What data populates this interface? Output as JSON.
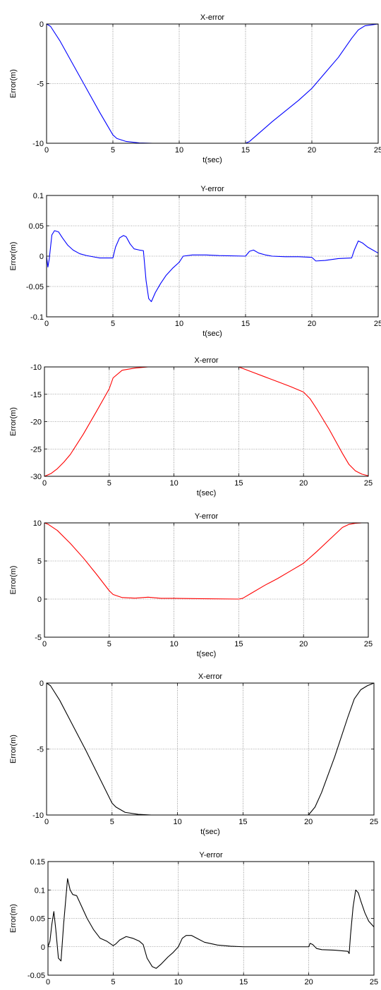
{
  "chart_data": [
    {
      "type": "line",
      "title": "X-error",
      "xlabel": "t(sec)",
      "ylabel": "Error(m)",
      "xlim": [
        0,
        25
      ],
      "ylim": [
        -10,
        0
      ],
      "xticks": [
        0,
        5,
        10,
        15,
        20,
        25
      ],
      "xtick_labels": [
        "0",
        "5",
        "10",
        "15",
        "20",
        "25"
      ],
      "yticks": [
        -10,
        -5,
        0
      ],
      "ytick_labels": [
        "-10",
        "-5",
        "0"
      ],
      "grid": true,
      "color": "#0000ff",
      "series": [
        {
          "x": [
            0,
            0.3,
            1,
            2,
            3,
            4,
            5,
            5.3,
            6,
            7,
            8,
            10,
            12,
            15,
            15.3,
            17,
            19,
            20,
            21,
            22,
            23,
            23.5,
            24,
            25
          ],
          "y": [
            0,
            -0.2,
            -1.4,
            -3.4,
            -5.4,
            -7.4,
            -9.3,
            -9.6,
            -9.85,
            -9.97,
            -10,
            -10,
            -10,
            -10,
            -9.85,
            -8.2,
            -6.4,
            -5.4,
            -4.1,
            -2.8,
            -1.2,
            -0.5,
            -0.15,
            0
          ]
        }
      ]
    },
    {
      "type": "line",
      "title": "Y-error",
      "xlabel": "t(sec)",
      "ylabel": "Error(m)",
      "xlim": [
        0,
        25
      ],
      "ylim": [
        -0.1,
        0.1
      ],
      "xticks": [
        0,
        5,
        10,
        15,
        20,
        25
      ],
      "xtick_labels": [
        "0",
        "5",
        "10",
        "15",
        "20",
        "25"
      ],
      "yticks": [
        -0.1,
        -0.05,
        0,
        0.05,
        0.1
      ],
      "ytick_labels": [
        "-0.1",
        "-0.05",
        "0",
        "0.05",
        "0.1"
      ],
      "grid": true,
      "color": "#0000ff",
      "series": [
        {
          "x": [
            0,
            0.1,
            0.2,
            0.4,
            0.6,
            0.9,
            1.2,
            1.6,
            2,
            2.5,
            3,
            3.5,
            4,
            4.5,
            5,
            5.2,
            5.5,
            5.8,
            6,
            6.3,
            6.6,
            7,
            7.3,
            7.5,
            7.7,
            7.9,
            8.2,
            8.6,
            9,
            9.5,
            10,
            10.3,
            11,
            12,
            13,
            15,
            15.3,
            15.6,
            16,
            16.5,
            17,
            18,
            19,
            20,
            20.3,
            21,
            22,
            23,
            23.2,
            23.5,
            23.8,
            24.2,
            24.6,
            25
          ],
          "y": [
            0,
            -0.018,
            -0.005,
            0.035,
            0.042,
            0.04,
            0.03,
            0.018,
            0.01,
            0.004,
            0.001,
            -0.001,
            -0.003,
            -0.003,
            -0.003,
            0.015,
            0.03,
            0.034,
            0.032,
            0.02,
            0.012,
            0.01,
            0.009,
            -0.04,
            -0.07,
            -0.075,
            -0.06,
            -0.045,
            -0.032,
            -0.02,
            -0.01,
            0,
            0.002,
            0.002,
            0.001,
            0,
            0.008,
            0.01,
            0.005,
            0.002,
            0,
            -0.001,
            -0.001,
            -0.002,
            -0.008,
            -0.007,
            -0.004,
            -0.003,
            0.01,
            0.025,
            0.022,
            0.015,
            0.01,
            0.005
          ]
        }
      ]
    },
    {
      "type": "line",
      "title": "X-error",
      "xlabel": "t(sec)",
      "ylabel": "Error(m)",
      "xlim": [
        0,
        25
      ],
      "ylim": [
        -30,
        -10
      ],
      "xticks": [
        0,
        5,
        10,
        15,
        20,
        25
      ],
      "xtick_labels": [
        "0",
        "5",
        "10",
        "15",
        "20",
        "25"
      ],
      "yticks": [
        -30,
        -25,
        -20,
        -15,
        -10
      ],
      "ytick_labels": [
        "-30",
        "-25",
        "-20",
        "-15",
        "-10"
      ],
      "grid": true,
      "color": "#ff0000",
      "series": [
        {
          "x": [
            0,
            0.5,
            1,
            1.5,
            2,
            3,
            4,
            5,
            5.3,
            6,
            7,
            8,
            10,
            12,
            15,
            16,
            17,
            18,
            19,
            20,
            20.5,
            21,
            22,
            23,
            23.5,
            24,
            24.5,
            25
          ],
          "y": [
            -30,
            -29.5,
            -28.6,
            -27.4,
            -26,
            -22.3,
            -18.2,
            -14.0,
            -12.0,
            -10.6,
            -10.2,
            -10,
            -10,
            -10,
            -10,
            -10.9,
            -11.8,
            -12.7,
            -13.6,
            -14.6,
            -15.8,
            -17.6,
            -21.5,
            -25.8,
            -27.8,
            -29.0,
            -29.6,
            -29.9
          ]
        }
      ]
    },
    {
      "type": "line",
      "title": "Y-error",
      "xlabel": "t(sec)",
      "ylabel": "Error(m)",
      "xlim": [
        0,
        25
      ],
      "ylim": [
        -5,
        10
      ],
      "xticks": [
        0,
        5,
        10,
        15,
        20,
        25
      ],
      "xtick_labels": [
        "0",
        "5",
        "10",
        "15",
        "20",
        "25"
      ],
      "yticks": [
        -5,
        0,
        5,
        10
      ],
      "ytick_labels": [
        "-5",
        "0",
        "5",
        "10"
      ],
      "grid": true,
      "color": "#ff0000",
      "series": [
        {
          "x": [
            0,
            0.3,
            1,
            2,
            3,
            4,
            5,
            5.3,
            6,
            7,
            8,
            9,
            10,
            12,
            15,
            15.3,
            16,
            17,
            18,
            19,
            20,
            21,
            22,
            23,
            23.5,
            24,
            24.5,
            25
          ],
          "y": [
            10,
            9.8,
            9.0,
            7.3,
            5.4,
            3.3,
            1.1,
            0.6,
            0.2,
            0.12,
            0.25,
            0.1,
            0.1,
            0.05,
            0,
            0.1,
            0.8,
            1.8,
            2.7,
            3.7,
            4.7,
            6.2,
            7.8,
            9.4,
            9.8,
            9.95,
            10,
            10
          ]
        }
      ]
    },
    {
      "type": "line",
      "title": "X-error",
      "xlabel": "t(sec)",
      "ylabel": "Error(m)",
      "xlim": [
        0,
        25
      ],
      "ylim": [
        -10,
        0
      ],
      "xticks": [
        0,
        5,
        10,
        15,
        20,
        25
      ],
      "xtick_labels": [
        "0",
        "5",
        "10",
        "15",
        "20",
        "25"
      ],
      "yticks": [
        -10,
        -5,
        0
      ],
      "ytick_labels": [
        "-10",
        "-5",
        "0"
      ],
      "grid": true,
      "color": "#000000",
      "series": [
        {
          "x": [
            0,
            0.3,
            1,
            2,
            3,
            4,
            5,
            5.3,
            6,
            7,
            8,
            10,
            12,
            15,
            18,
            20,
            20.5,
            21,
            22,
            23,
            23.5,
            24,
            24.5,
            25
          ],
          "y": [
            0,
            -0.2,
            -1.3,
            -3.2,
            -5.1,
            -7.1,
            -9.1,
            -9.4,
            -9.8,
            -9.95,
            -10,
            -10,
            -10,
            -10,
            -10,
            -10,
            -9.4,
            -8.3,
            -5.6,
            -2.6,
            -1.2,
            -0.5,
            -0.2,
            0
          ]
        }
      ]
    },
    {
      "type": "line",
      "title": "Y-error",
      "xlabel": "t(sec)",
      "ylabel": "Error(m)",
      "xlim": [
        0,
        25
      ],
      "ylim": [
        -0.05,
        0.15
      ],
      "xticks": [
        0,
        5,
        10,
        15,
        20,
        25
      ],
      "xtick_labels": [
        "0",
        "5",
        "10",
        "15",
        "20",
        "25"
      ],
      "yticks": [
        -0.05,
        0,
        0.05,
        0.1,
        0.15
      ],
      "ytick_labels": [
        "-0.05",
        "0",
        "0.05",
        "0.1",
        "0.15"
      ],
      "grid": true,
      "color": "#000000",
      "series": [
        {
          "x": [
            0,
            0.15,
            0.3,
            0.45,
            0.6,
            0.8,
            1,
            1.2,
            1.5,
            1.7,
            1.9,
            2.2,
            2.6,
            3,
            3.5,
            4,
            4.5,
            5,
            5.2,
            5.5,
            6,
            6.5,
            7,
            7.3,
            7.6,
            8,
            8.3,
            8.7,
            9.2,
            9.6,
            10,
            10.3,
            10.6,
            11,
            11.5,
            12,
            13,
            14,
            15,
            17,
            19,
            20,
            20.1,
            20.3,
            20.6,
            21,
            22,
            23,
            23.1,
            23.2,
            23.4,
            23.6,
            23.8,
            24,
            24.3,
            24.6,
            25
          ],
          "y": [
            0,
            0.01,
            0.04,
            0.062,
            0.03,
            -0.02,
            -0.025,
            0.04,
            0.12,
            0.1,
            0.092,
            0.09,
            0.07,
            0.05,
            0.03,
            0.015,
            0.01,
            0.002,
            0.005,
            0.012,
            0.018,
            0.015,
            0.01,
            0.004,
            -0.02,
            -0.035,
            -0.038,
            -0.03,
            -0.018,
            -0.01,
            0,
            0.015,
            0.02,
            0.02,
            0.014,
            0.008,
            0.003,
            0.001,
            0,
            0,
            0,
            0,
            0.006,
            0.004,
            -0.003,
            -0.005,
            -0.006,
            -0.008,
            -0.012,
            0.02,
            0.07,
            0.1,
            0.095,
            0.08,
            0.06,
            0.045,
            0.035
          ]
        }
      ]
    }
  ]
}
